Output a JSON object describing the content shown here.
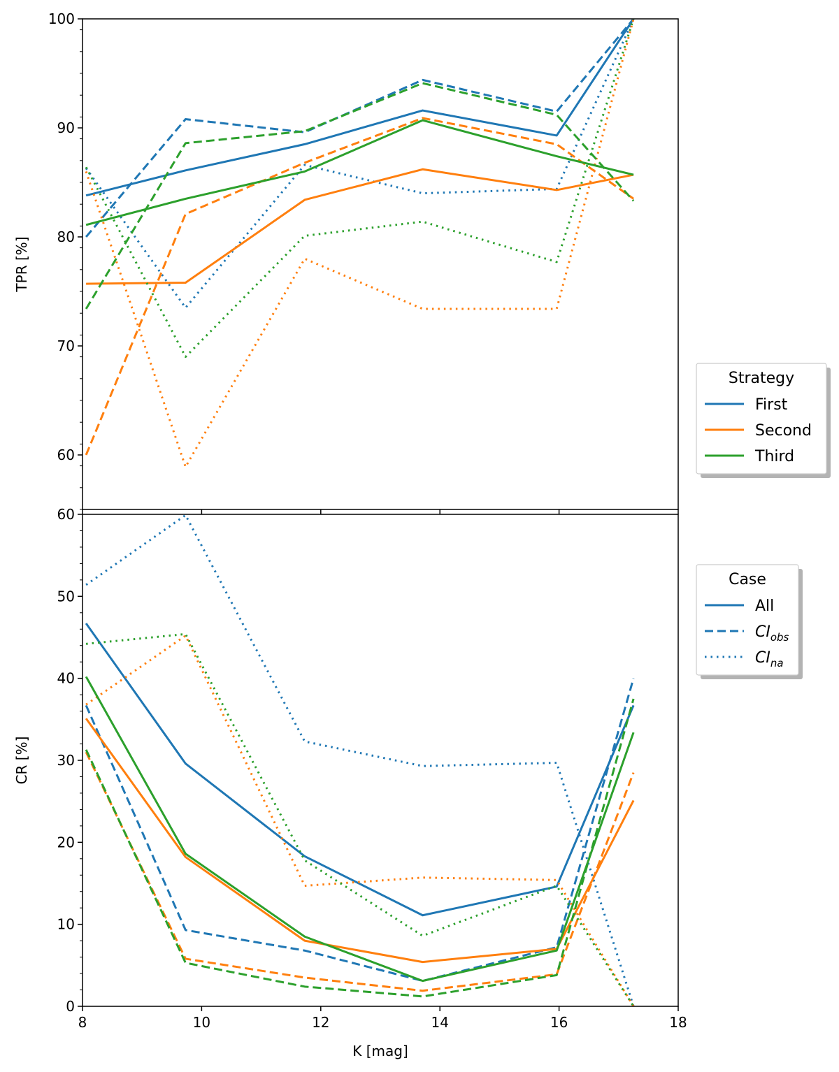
{
  "colors": {
    "first": "#1f77b4",
    "second": "#ff7f0e",
    "third": "#2ca02c",
    "axis": "#000000",
    "legend_border": "#cccccc",
    "legend_shadow": "#b3b3b3"
  },
  "legends": {
    "strategy": {
      "title": "Strategy",
      "entries": [
        {
          "label": "First",
          "color": "#1f77b4",
          "style": "solid"
        },
        {
          "label": "Second",
          "color": "#ff7f0e",
          "style": "solid"
        },
        {
          "label": "Third",
          "color": "#2ca02c",
          "style": "solid"
        }
      ]
    },
    "case": {
      "title": "Case",
      "entries": [
        {
          "label": "All",
          "sub": "",
          "color": "#1f77b4",
          "style": "solid"
        },
        {
          "label": "CI",
          "sub": "obs",
          "color": "#1f77b4",
          "style": "dashed"
        },
        {
          "label": "CI",
          "sub": "na",
          "color": "#1f77b4",
          "style": "dotted"
        }
      ]
    }
  },
  "chart_data": [
    {
      "type": "line",
      "id": "tpr",
      "title": "",
      "xlabel": "",
      "ylabel": "TPR [%]",
      "xlim": [
        8,
        18
      ],
      "ylim": [
        55,
        100
      ],
      "yticks": [
        60,
        70,
        80,
        90,
        100
      ],
      "ytick_labels": [
        "60",
        "70",
        "80",
        "90",
        "100"
      ],
      "grid": false,
      "x": [
        8.06,
        9.73,
        11.73,
        13.71,
        15.96,
        17.25
      ],
      "series": [
        {
          "name": "First All",
          "strategy": "First",
          "case": "All",
          "values": [
            83.8,
            86.1,
            88.5,
            91.6,
            89.3,
            100.0
          ]
        },
        {
          "name": "First CI_obs",
          "strategy": "First",
          "case": "CI_obs",
          "values": [
            80.0,
            90.8,
            89.6,
            94.4,
            91.5,
            100.0
          ]
        },
        {
          "name": "First CI_na",
          "strategy": "First",
          "case": "CI_na",
          "values": [
            86.3,
            73.5,
            86.6,
            84.0,
            84.4,
            100.0
          ]
        },
        {
          "name": "Second All",
          "strategy": "Second",
          "case": "All",
          "values": [
            75.7,
            75.8,
            83.4,
            86.2,
            84.3,
            85.7
          ]
        },
        {
          "name": "Second CI_obs",
          "strategy": "Second",
          "case": "CI_obs",
          "values": [
            60.0,
            82.1,
            86.8,
            90.9,
            88.5,
            83.5
          ]
        },
        {
          "name": "Second CI_na",
          "strategy": "Second",
          "case": "CI_na",
          "values": [
            86.0,
            58.9,
            78.0,
            73.4,
            73.4,
            100.0
          ]
        },
        {
          "name": "Third All",
          "strategy": "Third",
          "case": "All",
          "values": [
            81.1,
            83.5,
            86.0,
            90.7,
            87.4,
            85.7
          ]
        },
        {
          "name": "Third CI_obs",
          "strategy": "Third",
          "case": "CI_obs",
          "values": [
            73.4,
            88.6,
            89.7,
            94.1,
            91.2,
            83.3
          ]
        },
        {
          "name": "Third CI_na",
          "strategy": "Third",
          "case": "CI_na",
          "values": [
            86.4,
            69.0,
            80.1,
            81.4,
            77.7,
            100.0
          ]
        }
      ]
    },
    {
      "type": "line",
      "id": "cr",
      "title": "",
      "xlabel": "K [mag]",
      "ylabel": "CR [%]",
      "xlim": [
        8,
        18
      ],
      "ylim": [
        0,
        60
      ],
      "xticks": [
        8,
        10,
        12,
        14,
        16,
        18
      ],
      "xtick_labels": [
        "8",
        "10",
        "12",
        "14",
        "16",
        "18"
      ],
      "yticks": [
        0,
        10,
        20,
        30,
        40,
        50,
        60
      ],
      "ytick_labels": [
        "0",
        "10",
        "20",
        "30",
        "40",
        "50",
        "60"
      ],
      "grid": false,
      "x": [
        8.06,
        9.73,
        11.73,
        13.71,
        15.96,
        17.25
      ],
      "series": [
        {
          "name": "First All",
          "strategy": "First",
          "case": "All",
          "values": [
            46.7,
            29.6,
            18.3,
            11.1,
            14.6,
            36.7
          ]
        },
        {
          "name": "First CI_obs",
          "strategy": "First",
          "case": "CI_obs",
          "values": [
            36.7,
            9.3,
            6.8,
            3.1,
            7.2,
            40.0
          ]
        },
        {
          "name": "First CI_na",
          "strategy": "First",
          "case": "CI_na",
          "values": [
            51.4,
            59.9,
            32.3,
            29.3,
            29.7,
            0.0
          ]
        },
        {
          "name": "Second All",
          "strategy": "Second",
          "case": "All",
          "values": [
            35.1,
            18.2,
            8.0,
            5.4,
            7.0,
            25.1
          ]
        },
        {
          "name": "Second CI_obs",
          "strategy": "Second",
          "case": "CI_obs",
          "values": [
            31.0,
            5.8,
            3.5,
            1.9,
            3.9,
            28.5
          ]
        },
        {
          "name": "Second CI_na",
          "strategy": "Second",
          "case": "CI_na",
          "values": [
            36.8,
            45.2,
            14.7,
            15.7,
            15.4,
            0.0
          ]
        },
        {
          "name": "Third All",
          "strategy": "Third",
          "case": "All",
          "values": [
            40.2,
            18.6,
            8.5,
            3.1,
            6.8,
            33.4
          ]
        },
        {
          "name": "Third CI_obs",
          "strategy": "Third",
          "case": "CI_obs",
          "values": [
            31.3,
            5.3,
            2.4,
            1.2,
            3.8,
            37.5
          ]
        },
        {
          "name": "Third CI_na",
          "strategy": "Third",
          "case": "CI_na",
          "values": [
            44.2,
            45.4,
            17.8,
            8.6,
            14.7,
            0.0
          ]
        }
      ]
    }
  ]
}
